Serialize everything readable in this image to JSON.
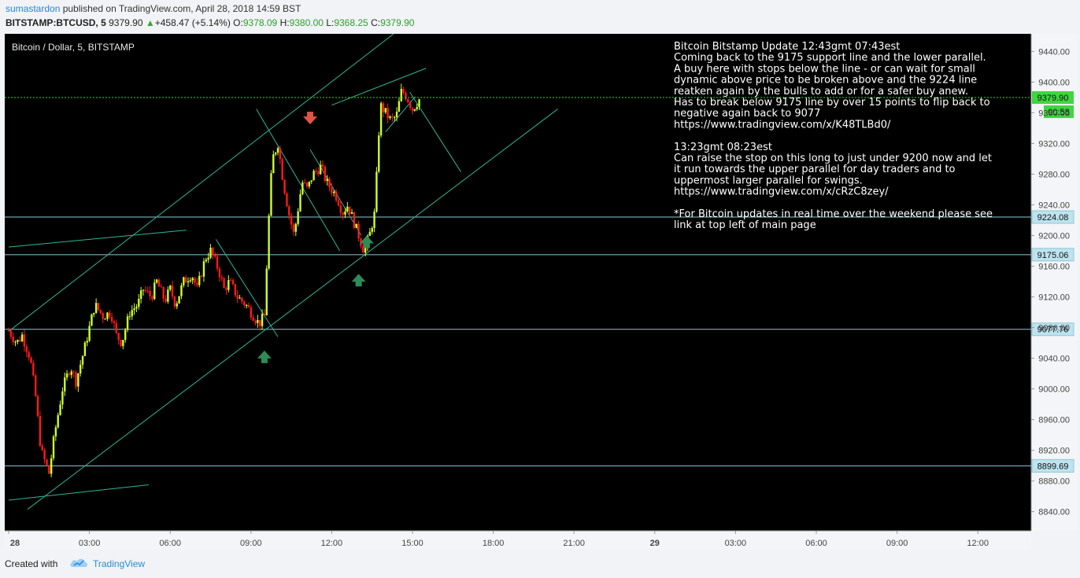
{
  "header": {
    "author": "sumastardon",
    "published": " published on TradingView.com, April 28, 2018 14:59 BST",
    "symbol": "BITSTAMP:BTCUSD, 5",
    "last": "9379.90",
    "change_arrow": "▲",
    "change": "+458.47 (+5.14%)",
    "o_label": "O:",
    "o": "9378.09",
    "h_label": "H:",
    "h": "9380.00",
    "l_label": "L:",
    "l": "9368.25",
    "c_label": "C:",
    "c": "9379.90"
  },
  "footer": {
    "created": "Created with",
    "brand": "TradingView"
  },
  "colors": {
    "background": "#000000",
    "up": "#ccff33",
    "down": "#ff1a1a",
    "trendline": "#2fb597",
    "hline": "#8ec8d3",
    "price_line": "#2edc2e",
    "arrow_up": "#2e8b57",
    "arrow_down": "#e05548"
  },
  "chart_data": {
    "type": "candlestick",
    "title": "Bitcoin / Dollar, 5, BITSTAMP",
    "x_ticks": [
      "28",
      "03:00",
      "06:00",
      "09:00",
      "12:00",
      "15:00",
      "18:00",
      "21:00",
      "29",
      "03:00",
      "06:00",
      "09:00",
      "12:00"
    ],
    "x_range_hours": [
      0,
      38
    ],
    "y_ticks": [
      9440,
      9400,
      9360,
      9320,
      9280,
      9240,
      9200,
      9160,
      9120,
      9080,
      9040,
      9000,
      8960,
      8920,
      8880,
      8840
    ],
    "y_tick_labels": [
      "9440.00",
      "9400.00",
      "9360.00",
      "9320.00",
      "9280.00",
      "9240.00",
      "9200.00",
      "9160.00",
      "9120.00",
      "9080.00",
      "9040.00",
      "9000.00",
      "8960.00",
      "8920.00",
      "8880.00",
      "8840.00"
    ],
    "ylim": [
      8815,
      9463
    ],
    "current_price": {
      "value": 9379.9,
      "label": "9379.90",
      "countdown": "00:58"
    },
    "horizontal_levels": [
      {
        "value": 9224.08,
        "label": "9224.08"
      },
      {
        "value": 9175.06,
        "label": "9175.06"
      },
      {
        "value": 9077.76,
        "label": "9077.76"
      },
      {
        "value": 8899.69,
        "label": "8899.69"
      }
    ],
    "trendlines": [
      {
        "from": [
          0.0,
          9075
        ],
        "to": [
          14.3,
          9463
        ]
      },
      {
        "from": [
          0.7,
          8843
        ],
        "to": [
          20.4,
          9365
        ]
      },
      {
        "from": [
          12.0,
          9370
        ],
        "to": [
          15.5,
          9418
        ]
      },
      {
        "from": [
          9.2,
          9365
        ],
        "to": [
          12.3,
          9180
        ]
      },
      {
        "from": [
          11.2,
          9312
        ],
        "to": [
          13.1,
          9200
        ]
      },
      {
        "from": [
          7.7,
          9195
        ],
        "to": [
          10.0,
          9068
        ]
      },
      {
        "from": [
          14.9,
          9387
        ],
        "to": [
          16.8,
          9283
        ]
      },
      {
        "from": [
          14.0,
          9335
        ],
        "to": [
          15.1,
          9381
        ]
      },
      {
        "from": [
          0.0,
          9185
        ],
        "to": [
          6.6,
          9207
        ]
      },
      {
        "from": [
          0.0,
          8855
        ],
        "to": [
          5.2,
          8875
        ]
      }
    ],
    "arrows": [
      {
        "t": 11.2,
        "price": 9345,
        "dir": "down"
      },
      {
        "t": 9.5,
        "price": 9050,
        "dir": "up"
      },
      {
        "t": 13.3,
        "price": 9200,
        "dir": "up"
      },
      {
        "t": 13.0,
        "price": 9150,
        "dir": "up"
      }
    ],
    "note": [
      "Bitcoin Bitstamp Update  12:43gmt  07:43est",
      "Coming back to the 9175 support line and the lower parallel.",
      "A buy here with stops below the line - or can wait for small",
      "dynamic above price to be broken above and the 9224 line",
      "reatken again by the bulls to add or for a safer buy anew.",
      "Has to break below 9175 line by over 15 points to flip back to",
      "negative again back to 9077",
      "https://www.tradingview.com/x/K48TLBd0/",
      "",
      "13:23gmt  08:23est",
      "Can raise the stop on this long to just under 9200 now and let",
      "it run towards the upper parallel for day traders and to",
      "uppermost larger parallel for swings.",
      "https://www.tradingview.com/x/cRzC8zey/",
      "",
      "*For Bitcoin updates in real time over the weekend please see",
      "link at top left of main page"
    ],
    "anchors": [
      [
        0.0,
        9076
      ],
      [
        0.3,
        9060
      ],
      [
        0.5,
        9070
      ],
      [
        0.8,
        9040
      ],
      [
        1.0,
        8990
      ],
      [
        1.2,
        8920
      ],
      [
        1.5,
        8890
      ],
      [
        1.7,
        8940
      ],
      [
        2.0,
        9000
      ],
      [
        2.3,
        9030
      ],
      [
        2.5,
        9010
      ],
      [
        2.8,
        9050
      ],
      [
        3.0,
        9080
      ],
      [
        3.2,
        9110
      ],
      [
        3.5,
        9095
      ],
      [
        3.8,
        9100
      ],
      [
        4.0,
        9070
      ],
      [
        4.2,
        9060
      ],
      [
        4.5,
        9100
      ],
      [
        4.8,
        9110
      ],
      [
        5.0,
        9130
      ],
      [
        5.3,
        9120
      ],
      [
        5.5,
        9140
      ],
      [
        5.8,
        9115
      ],
      [
        6.0,
        9130
      ],
      [
        6.2,
        9110
      ],
      [
        6.5,
        9140
      ],
      [
        6.8,
        9150
      ],
      [
        7.0,
        9130
      ],
      [
        7.3,
        9170
      ],
      [
        7.5,
        9180
      ],
      [
        7.8,
        9155
      ],
      [
        8.0,
        9130
      ],
      [
        8.2,
        9140
      ],
      [
        8.5,
        9120
      ],
      [
        8.8,
        9110
      ],
      [
        9.0,
        9100
      ],
      [
        9.3,
        9085
      ],
      [
        9.5,
        9095
      ],
      [
        9.7,
        9250
      ],
      [
        9.8,
        9300
      ],
      [
        10.0,
        9320
      ],
      [
        10.2,
        9270
      ],
      [
        10.4,
        9230
      ],
      [
        10.6,
        9200
      ],
      [
        10.9,
        9270
      ],
      [
        11.1,
        9260
      ],
      [
        11.3,
        9280
      ],
      [
        11.6,
        9290
      ],
      [
        11.8,
        9270
      ],
      [
        12.0,
        9260
      ],
      [
        12.2,
        9250
      ],
      [
        12.4,
        9230
      ],
      [
        12.6,
        9240
      ],
      [
        12.8,
        9220
      ],
      [
        13.0,
        9200
      ],
      [
        13.2,
        9180
      ],
      [
        13.4,
        9200
      ],
      [
        13.6,
        9230
      ],
      [
        13.7,
        9300
      ],
      [
        13.8,
        9370
      ],
      [
        14.0,
        9360
      ],
      [
        14.2,
        9350
      ],
      [
        14.4,
        9355
      ],
      [
        14.6,
        9390
      ],
      [
        14.8,
        9380
      ],
      [
        15.0,
        9365
      ],
      [
        15.2,
        9375
      ],
      [
        15.3,
        9380
      ]
    ]
  }
}
